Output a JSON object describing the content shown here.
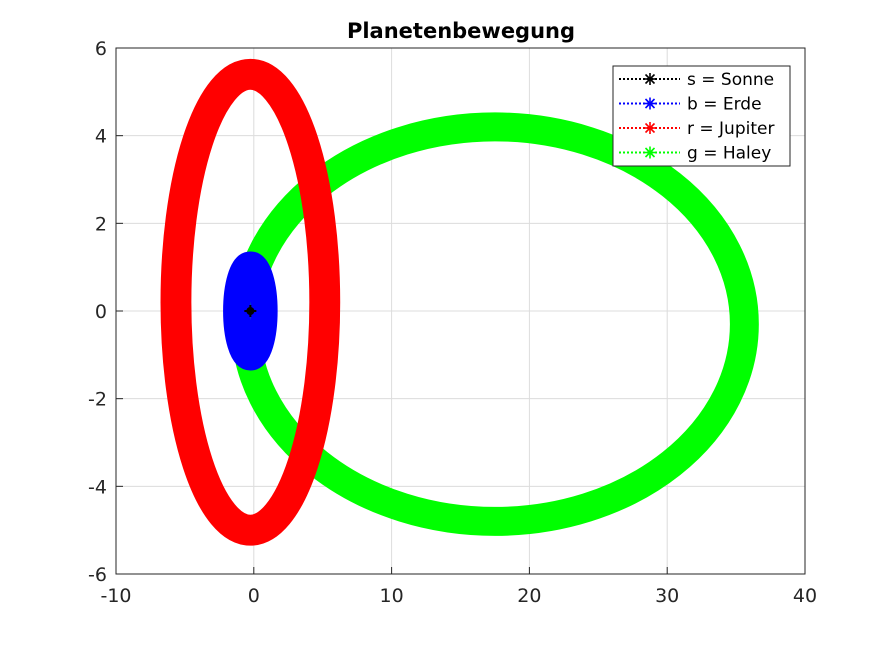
{
  "chart_data": {
    "type": "line",
    "title": "Planetenbewegung",
    "xlabel": "",
    "ylabel": "",
    "xlim": [
      -10,
      40
    ],
    "ylim": [
      -6,
      6
    ],
    "xticks": [
      -10,
      0,
      10,
      20,
      30,
      40
    ],
    "yticks": [
      -6,
      -4,
      -2,
      0,
      2,
      4,
      6
    ],
    "xtick_labels": [
      "-10",
      "0",
      "10",
      "20",
      "30",
      "40"
    ],
    "ytick_labels": [
      "-6",
      "-4",
      "-2",
      "0",
      "2",
      "4",
      "6"
    ],
    "grid": true,
    "legend_position": "top-right",
    "series": [
      {
        "name": "s = Sonne",
        "color": "#000000",
        "marker": "asterisk",
        "x": [
          -0.25
        ],
        "y": [
          0
        ]
      },
      {
        "name": "b = Erde",
        "color": "#0000ff",
        "marker": "asterisk",
        "orbit": {
          "cx": -0.25,
          "cy": 0,
          "rx": 1.0,
          "ry": 1.05,
          "thickness": 0.28
        }
      },
      {
        "name": "r = Jupiter",
        "color": "#ff0000",
        "marker": "asterisk",
        "orbit": {
          "cx": -0.25,
          "cy": 0.2,
          "rx": 5.4,
          "ry": 5.2,
          "thickness": 0.32
        }
      },
      {
        "name": "g = Haley",
        "color": "#00ff00",
        "marker": "asterisk",
        "orbit": {
          "cx": 17.5,
          "cy": -0.3,
          "rx": 18.1,
          "ry": 4.5,
          "thickness": 0.3
        }
      }
    ]
  }
}
